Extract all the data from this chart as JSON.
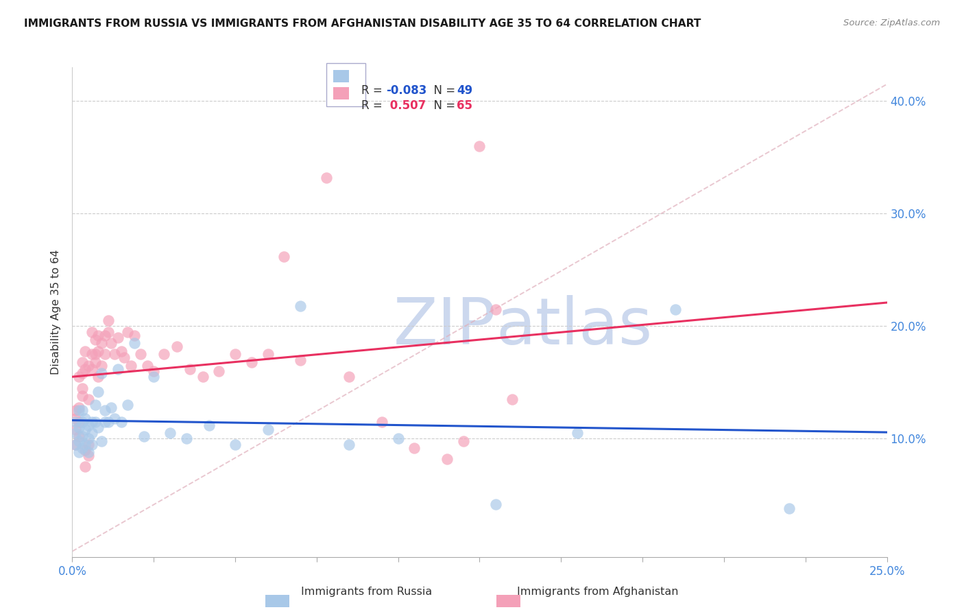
{
  "title": "IMMIGRANTS FROM RUSSIA VS IMMIGRANTS FROM AFGHANISTAN DISABILITY AGE 35 TO 64 CORRELATION CHART",
  "source": "Source: ZipAtlas.com",
  "xlabel_russia": "Immigrants from Russia",
  "xlabel_afghanistan": "Immigrants from Afghanistan",
  "ylabel": "Disability Age 35 to 64",
  "r_russia": -0.083,
  "n_russia": 49,
  "r_afghanistan": 0.507,
  "n_afghanistan": 65,
  "xlim": [
    0.0,
    0.25
  ],
  "ylim": [
    -0.005,
    0.43
  ],
  "yticks_right": [
    0.1,
    0.2,
    0.3,
    0.4
  ],
  "color_russia": "#a8c8e8",
  "color_afghanistan": "#f4a0b8",
  "line_color_russia": "#2255cc",
  "line_color_afghanistan": "#e83060",
  "diag_color": "#e0b0bc",
  "axis_color": "#4488dd",
  "title_color": "#1a1a1a",
  "watermark_color": "#ccd8ee",
  "grid_color": "#cccccc",
  "russia_x": [
    0.001,
    0.001,
    0.001,
    0.002,
    0.002,
    0.002,
    0.002,
    0.003,
    0.003,
    0.003,
    0.003,
    0.004,
    0.004,
    0.004,
    0.005,
    0.005,
    0.005,
    0.006,
    0.006,
    0.006,
    0.007,
    0.007,
    0.008,
    0.008,
    0.009,
    0.009,
    0.01,
    0.01,
    0.011,
    0.012,
    0.013,
    0.014,
    0.015,
    0.017,
    0.019,
    0.022,
    0.025,
    0.03,
    0.035,
    0.042,
    0.05,
    0.06,
    0.07,
    0.085,
    0.1,
    0.13,
    0.155,
    0.185,
    0.22
  ],
  "russia_y": [
    0.115,
    0.105,
    0.095,
    0.125,
    0.11,
    0.098,
    0.088,
    0.115,
    0.102,
    0.092,
    0.125,
    0.108,
    0.095,
    0.118,
    0.1,
    0.112,
    0.088,
    0.105,
    0.095,
    0.115,
    0.13,
    0.115,
    0.142,
    0.11,
    0.158,
    0.098,
    0.125,
    0.115,
    0.115,
    0.128,
    0.118,
    0.162,
    0.115,
    0.13,
    0.185,
    0.102,
    0.155,
    0.105,
    0.1,
    0.112,
    0.095,
    0.108,
    0.218,
    0.095,
    0.1,
    0.042,
    0.105,
    0.215,
    0.038
  ],
  "afghanistan_x": [
    0.001,
    0.001,
    0.001,
    0.001,
    0.002,
    0.002,
    0.002,
    0.002,
    0.003,
    0.003,
    0.003,
    0.003,
    0.004,
    0.004,
    0.004,
    0.004,
    0.005,
    0.005,
    0.005,
    0.005,
    0.006,
    0.006,
    0.006,
    0.007,
    0.007,
    0.007,
    0.008,
    0.008,
    0.008,
    0.009,
    0.009,
    0.01,
    0.01,
    0.011,
    0.011,
    0.012,
    0.013,
    0.014,
    0.015,
    0.016,
    0.017,
    0.018,
    0.019,
    0.021,
    0.023,
    0.025,
    0.028,
    0.032,
    0.036,
    0.04,
    0.045,
    0.05,
    0.055,
    0.06,
    0.065,
    0.07,
    0.078,
    0.085,
    0.095,
    0.105,
    0.115,
    0.12,
    0.125,
    0.13,
    0.135
  ],
  "afghanistan_y": [
    0.108,
    0.118,
    0.095,
    0.125,
    0.102,
    0.115,
    0.155,
    0.128,
    0.138,
    0.145,
    0.168,
    0.158,
    0.178,
    0.162,
    0.09,
    0.075,
    0.135,
    0.165,
    0.085,
    0.095,
    0.175,
    0.162,
    0.195,
    0.188,
    0.175,
    0.168,
    0.192,
    0.178,
    0.155,
    0.185,
    0.165,
    0.192,
    0.175,
    0.195,
    0.205,
    0.185,
    0.175,
    0.19,
    0.178,
    0.172,
    0.195,
    0.165,
    0.192,
    0.175,
    0.165,
    0.16,
    0.175,
    0.182,
    0.162,
    0.155,
    0.16,
    0.175,
    0.168,
    0.175,
    0.262,
    0.17,
    0.332,
    0.155,
    0.115,
    0.092,
    0.082,
    0.098,
    0.36,
    0.215,
    0.135
  ]
}
